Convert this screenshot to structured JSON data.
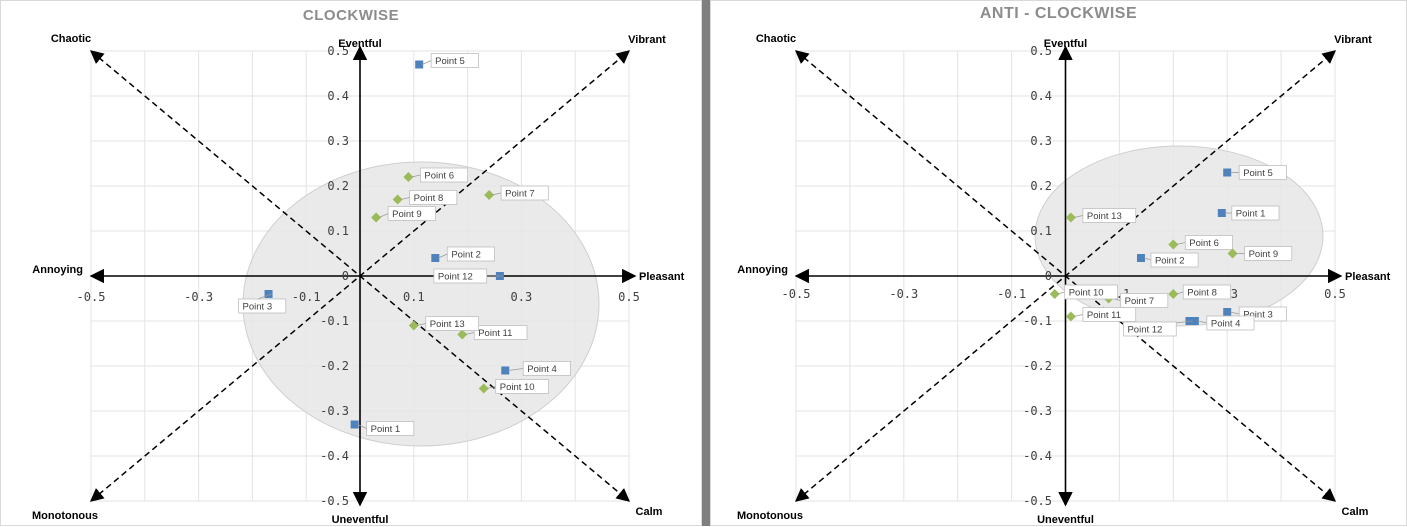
{
  "charts": [
    {
      "title": "CLOCKWISE",
      "axis_labels": {
        "top": "Eventful",
        "bottom": "Uneventful",
        "left": "Annoying",
        "right": "Pleasant",
        "top_left": "Chaotic",
        "top_right": "Vibrant",
        "bottom_left": "Monotonous",
        "bottom_right": "Calm"
      },
      "x_ticks": [
        "-0.5",
        "-0.3",
        "-0.1",
        "0.1",
        "0.3",
        "0.5"
      ],
      "y_ticks": [
        "0.5",
        "0.4",
        "0.3",
        "0.2",
        "0.1",
        "0",
        "-0.1",
        "-0.2",
        "-0.3",
        "-0.4",
        "-0.5"
      ]
    },
    {
      "title": "ANTI - CLOCKWISE",
      "axis_labels": {
        "top": "Eventful",
        "bottom": "Uneventful",
        "left": "Annoying",
        "right": "Pleasant",
        "top_left": "Chaotic",
        "top_right": "Vibrant",
        "bottom_left": "Monotonous",
        "bottom_right": "Calm"
      },
      "x_ticks": [
        "-0.5",
        "-0.3",
        "-0.1",
        "0.1",
        "0.3",
        "0.5"
      ],
      "y_ticks": [
        "0.5",
        "0.4",
        "0.3",
        "0.2",
        "0.1",
        "0",
        "-0.1",
        "-0.2",
        "-0.3",
        "-0.4",
        "-0.5"
      ]
    }
  ],
  "chart_data": [
    {
      "type": "scatter",
      "title": "CLOCKWISE",
      "xlim": [
        -0.5,
        0.5
      ],
      "ylim": [
        -0.5,
        0.5
      ],
      "grid": true,
      "series": [
        {
          "color": "#4f81bd",
          "marker": "square",
          "points": [
            {
              "label": "Point 1",
              "x": -0.01,
              "y": -0.33
            },
            {
              "label": "Point 2",
              "x": 0.14,
              "y": 0.04
            },
            {
              "label": "Point 3",
              "x": -0.17,
              "y": -0.04
            },
            {
              "label": "Point 4",
              "x": 0.27,
              "y": -0.21
            },
            {
              "label": "Point 5",
              "x": 0.11,
              "y": 0.47
            },
            {
              "label": "Point 12",
              "x": 0.26,
              "y": 0.0
            }
          ]
        },
        {
          "color": "#9bbb59",
          "marker": "diamond",
          "points": [
            {
              "label": "Point 6",
              "x": 0.09,
              "y": 0.22
            },
            {
              "label": "Point 7",
              "x": 0.24,
              "y": 0.18
            },
            {
              "label": "Point 8",
              "x": 0.07,
              "y": 0.17
            },
            {
              "label": "Point 9",
              "x": 0.03,
              "y": 0.13
            },
            {
              "label": "Point 10",
              "x": 0.23,
              "y": -0.25
            },
            {
              "label": "Point 11",
              "x": 0.19,
              "y": -0.13
            },
            {
              "label": "Point 13",
              "x": 0.1,
              "y": -0.11
            }
          ]
        }
      ]
    },
    {
      "type": "scatter",
      "title": "ANTI - CLOCKWISE",
      "xlim": [
        -0.5,
        0.5
      ],
      "ylim": [
        -0.5,
        0.5
      ],
      "grid": true,
      "series": [
        {
          "color": "#4f81bd",
          "marker": "square",
          "points": [
            {
              "label": "Point 1",
              "x": 0.29,
              "y": 0.14
            },
            {
              "label": "Point 2",
              "x": 0.14,
              "y": 0.04
            },
            {
              "label": "Point 3",
              "x": 0.3,
              "y": -0.08
            },
            {
              "label": "Point 4",
              "x": 0.24,
              "y": -0.1
            },
            {
              "label": "Point 5",
              "x": 0.3,
              "y": 0.23
            },
            {
              "label": "Point 12",
              "x": 0.23,
              "y": -0.1
            }
          ]
        },
        {
          "color": "#9bbb59",
          "marker": "diamond",
          "points": [
            {
              "label": "Point 6",
              "x": 0.2,
              "y": 0.07
            },
            {
              "label": "Point 7",
              "x": 0.08,
              "y": -0.05
            },
            {
              "label": "Point 8",
              "x": 0.2,
              "y": -0.04
            },
            {
              "label": "Point 9",
              "x": 0.31,
              "y": 0.05
            },
            {
              "label": "Point 10",
              "x": -0.02,
              "y": -0.04
            },
            {
              "label": "Point 11",
              "x": 0.01,
              "y": -0.09
            },
            {
              "label": "Point 13",
              "x": 0.01,
              "y": 0.13
            }
          ]
        }
      ]
    }
  ]
}
